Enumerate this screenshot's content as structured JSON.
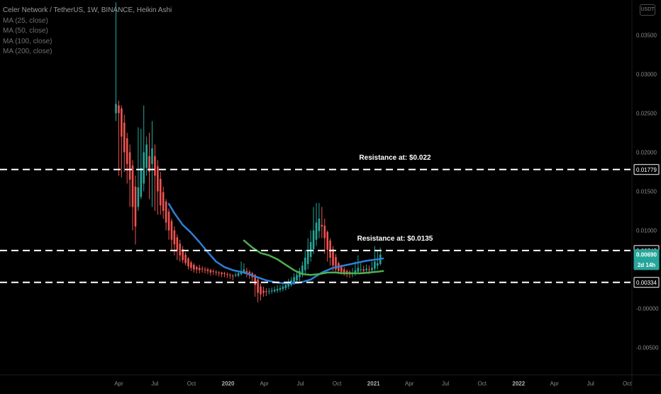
{
  "header": {
    "title": "Celer Network / TetherUS, 1W, BINANCE, Heikin Ashi",
    "indicators": [
      "MA (25, close)",
      "MA (50, close)",
      "MA (100, close)",
      "MA (200, close)"
    ],
    "currency": "USDT"
  },
  "colors": {
    "background": "#000000",
    "up": "#26a69a",
    "down": "#ef5350",
    "ma_blue": "#2d7fd6",
    "ma_green": "#4caf50",
    "resistance": "#ffffff",
    "axis_text": "#8a8a8a"
  },
  "chart_data": {
    "type": "candlestick",
    "ylim": [
      -0.0085,
      0.0395
    ],
    "y_ticks": [
      "0.03500",
      "0.03000",
      "0.02500",
      "0.02000",
      "0.01500",
      "0.01000",
      "-0.00000",
      "-0.00500"
    ],
    "x_ticks": [
      "Apr",
      "Jul",
      "Oct",
      "2020",
      "Apr",
      "Jul",
      "Oct",
      "2021",
      "Apr",
      "Jul",
      "Oct",
      "2022",
      "Apr",
      "Jul",
      "Oct"
    ],
    "x_start": "2019-03-25",
    "grid": false,
    "candles": [
      [
        "2019-03-25",
        0.025,
        0.0262,
        0.0392,
        0.024
      ],
      [
        "2019-04-01",
        0.026,
        0.025,
        0.0266,
        0.017
      ],
      [
        "2019-04-08",
        0.0256,
        0.022,
        0.026,
        0.0168
      ],
      [
        "2019-04-15",
        0.0238,
        0.02,
        0.0248,
        0.0175
      ],
      [
        "2019-04-22",
        0.0218,
        0.0185,
        0.0225,
        0.016
      ],
      [
        "2019-04-29",
        0.02,
        0.0165,
        0.021,
        0.013
      ],
      [
        "2019-05-06",
        0.0183,
        0.013,
        0.019,
        0.01
      ],
      [
        "2019-05-13",
        0.0156,
        0.0105,
        0.017,
        0.0082
      ],
      [
        "2019-05-20",
        0.013,
        0.0155,
        0.0232,
        0.0125
      ],
      [
        "2019-05-27",
        0.0143,
        0.018,
        0.023,
        0.014
      ],
      [
        "2019-06-03",
        0.016,
        0.02,
        0.026,
        0.015
      ],
      [
        "2019-06-10",
        0.018,
        0.021,
        0.022,
        0.017
      ],
      [
        "2019-06-17",
        0.0195,
        0.0175,
        0.0225,
        0.014
      ],
      [
        "2019-06-24",
        0.0185,
        0.0205,
        0.024,
        0.013
      ],
      [
        "2019-07-01",
        0.0195,
        0.017,
        0.021,
        0.0125
      ],
      [
        "2019-07-08",
        0.0182,
        0.015,
        0.019,
        0.012
      ],
      [
        "2019-07-15",
        0.0166,
        0.0132,
        0.0175,
        0.012
      ],
      [
        "2019-07-22",
        0.0149,
        0.0125,
        0.0156,
        0.0115
      ],
      [
        "2019-07-29",
        0.0137,
        0.011,
        0.014,
        0.01
      ],
      [
        "2019-08-05",
        0.0124,
        0.01,
        0.0128,
        0.0088
      ],
      [
        "2019-08-12",
        0.0112,
        0.0088,
        0.0115,
        0.0075
      ],
      [
        "2019-08-19",
        0.01,
        0.0082,
        0.0105,
        0.0068
      ],
      [
        "2019-08-26",
        0.0091,
        0.0075,
        0.0095,
        0.0062
      ],
      [
        "2019-09-02",
        0.0083,
        0.0068,
        0.0088,
        0.006
      ],
      [
        "2019-09-09",
        0.0076,
        0.0062,
        0.008,
        0.0058
      ],
      [
        "2019-09-16",
        0.0069,
        0.0058,
        0.0072,
        0.0055
      ],
      [
        "2019-09-23",
        0.0064,
        0.0054,
        0.0066,
        0.005
      ],
      [
        "2019-09-30",
        0.0059,
        0.0052,
        0.0061,
        0.0048
      ],
      [
        "2019-10-07",
        0.0056,
        0.005,
        0.0058,
        0.0046
      ],
      [
        "2019-10-14",
        0.0053,
        0.005,
        0.0055,
        0.0045
      ],
      [
        "2019-10-21",
        0.0052,
        0.0049,
        0.0056,
        0.0045
      ],
      [
        "2019-10-28",
        0.0051,
        0.005,
        0.0054,
        0.0046
      ],
      [
        "2019-11-04",
        0.005,
        0.0049,
        0.0053,
        0.0045
      ],
      [
        "2019-11-11",
        0.005,
        0.0048,
        0.0052,
        0.0044
      ],
      [
        "2019-11-18",
        0.0049,
        0.0046,
        0.0051,
        0.0042
      ],
      [
        "2019-11-25",
        0.0048,
        0.0047,
        0.005,
        0.0043
      ],
      [
        "2019-12-02",
        0.0047,
        0.0046,
        0.0049,
        0.0042
      ],
      [
        "2019-12-09",
        0.0046,
        0.0045,
        0.0048,
        0.0041
      ],
      [
        "2019-12-16",
        0.0046,
        0.0044,
        0.0047,
        0.004
      ],
      [
        "2019-12-23",
        0.0045,
        0.0044,
        0.0047,
        0.004
      ],
      [
        "2019-12-30",
        0.0044,
        0.0043,
        0.0046,
        0.0039
      ],
      [
        "2020-01-06",
        0.0043,
        0.0042,
        0.0045,
        0.0038
      ],
      [
        "2020-01-13",
        0.0042,
        0.0041,
        0.0044,
        0.0036
      ],
      [
        "2020-01-20",
        0.0042,
        0.0043,
        0.0046,
        0.004
      ],
      [
        "2020-01-27",
        0.0042,
        0.0045,
        0.0048,
        0.004
      ],
      [
        "2020-02-03",
        0.0044,
        0.0048,
        0.006,
        0.0042
      ],
      [
        "2020-02-10",
        0.0046,
        0.005,
        0.0058,
        0.0044
      ],
      [
        "2020-02-17",
        0.0048,
        0.0046,
        0.0052,
        0.004
      ],
      [
        "2020-02-24",
        0.0047,
        0.0043,
        0.0049,
        0.0038
      ],
      [
        "2020-03-02",
        0.0045,
        0.004,
        0.0047,
        0.0035
      ],
      [
        "2020-03-09",
        0.0043,
        0.003,
        0.0044,
        0.0015
      ],
      [
        "2020-03-16",
        0.0037,
        0.002,
        0.004,
        0.0008
      ],
      [
        "2020-03-23",
        0.0028,
        0.0018,
        0.0032,
        0.001
      ],
      [
        "2020-03-30",
        0.0023,
        0.002,
        0.0028,
        0.0015
      ],
      [
        "2020-04-06",
        0.0022,
        0.0021,
        0.0026,
        0.0016
      ],
      [
        "2020-04-13",
        0.0022,
        0.0022,
        0.0026,
        0.0018
      ],
      [
        "2020-04-20",
        0.0022,
        0.0023,
        0.0027,
        0.0019
      ],
      [
        "2020-04-27",
        0.0022,
        0.0024,
        0.0028,
        0.002
      ],
      [
        "2020-05-04",
        0.0023,
        0.0025,
        0.003,
        0.002
      ],
      [
        "2020-05-11",
        0.0024,
        0.0026,
        0.003,
        0.0021
      ],
      [
        "2020-05-18",
        0.0025,
        0.0028,
        0.0032,
        0.0022
      ],
      [
        "2020-05-25",
        0.0026,
        0.003,
        0.0034,
        0.0023
      ],
      [
        "2020-06-01",
        0.0028,
        0.0033,
        0.0038,
        0.0025
      ],
      [
        "2020-06-08",
        0.003,
        0.0036,
        0.004,
        0.0028
      ],
      [
        "2020-06-15",
        0.0033,
        0.004,
        0.0045,
        0.003
      ],
      [
        "2020-06-22",
        0.0036,
        0.0043,
        0.0048,
        0.0032
      ],
      [
        "2020-06-29",
        0.004,
        0.0048,
        0.0052,
        0.0035
      ],
      [
        "2020-07-06",
        0.0044,
        0.0055,
        0.006,
        0.004
      ],
      [
        "2020-07-13",
        0.0049,
        0.0065,
        0.0075,
        0.0045
      ],
      [
        "2020-07-20",
        0.0057,
        0.0075,
        0.009,
        0.005
      ],
      [
        "2020-07-27",
        0.0066,
        0.0085,
        0.01,
        0.006
      ],
      [
        "2020-08-03",
        0.0076,
        0.01,
        0.013,
        0.007
      ],
      [
        "2020-08-10",
        0.0088,
        0.011,
        0.0135,
        0.008
      ],
      [
        "2020-08-17",
        0.0099,
        0.0115,
        0.0135,
        0.009
      ],
      [
        "2020-08-24",
        0.0107,
        0.0105,
        0.013,
        0.009
      ],
      [
        "2020-08-31",
        0.0106,
        0.009,
        0.0115,
        0.007
      ],
      [
        "2020-09-07",
        0.0098,
        0.0075,
        0.01,
        0.006
      ],
      [
        "2020-09-14",
        0.0087,
        0.0065,
        0.009,
        0.0055
      ],
      [
        "2020-09-21",
        0.0076,
        0.0055,
        0.008,
        0.0048
      ],
      [
        "2020-09-28",
        0.0066,
        0.005,
        0.007,
        0.0045
      ],
      [
        "2020-10-05",
        0.0058,
        0.0048,
        0.006,
        0.0044
      ],
      [
        "2020-10-12",
        0.0053,
        0.0047,
        0.0056,
        0.0043
      ],
      [
        "2020-10-19",
        0.005,
        0.0046,
        0.0053,
        0.0042
      ],
      [
        "2020-10-26",
        0.0048,
        0.0045,
        0.005,
        0.004
      ],
      [
        "2020-11-02",
        0.0047,
        0.0044,
        0.0049,
        0.0039
      ],
      [
        "2020-11-09",
        0.0045,
        0.0046,
        0.0052,
        0.004
      ],
      [
        "2020-11-16",
        0.0046,
        0.0049,
        0.006,
        0.0042
      ],
      [
        "2020-11-23",
        0.0047,
        0.0052,
        0.0068,
        0.0045
      ],
      [
        "2020-11-30",
        0.005,
        0.005,
        0.0058,
        0.0045
      ],
      [
        "2020-12-07",
        0.005,
        0.0048,
        0.0055,
        0.0044
      ],
      [
        "2020-12-14",
        0.0049,
        0.0051,
        0.0056,
        0.0045
      ],
      [
        "2020-12-21",
        0.005,
        0.0049,
        0.0055,
        0.0044
      ],
      [
        "2020-12-28",
        0.0049,
        0.0052,
        0.006,
        0.0046
      ],
      [
        "2021-01-04",
        0.0051,
        0.006,
        0.008,
        0.0048
      ],
      [
        "2021-01-11",
        0.0055,
        0.0058,
        0.0075,
        0.005
      ],
      [
        "2021-01-18",
        0.0057,
        0.0069,
        0.0078,
        0.0055
      ]
    ],
    "ma_series": [
      {
        "color": "#2d7fd6",
        "points": [
          [
            "2019-08-05",
            0.0134
          ],
          [
            "2019-08-19",
            0.0122
          ],
          [
            "2019-09-09",
            0.0107
          ],
          [
            "2019-09-30",
            0.0097
          ],
          [
            "2019-10-21",
            0.0085
          ],
          [
            "2019-11-11",
            0.0072
          ],
          [
            "2019-12-02",
            0.006
          ],
          [
            "2019-12-23",
            0.0053
          ],
          [
            "2020-01-13",
            0.0049
          ],
          [
            "2020-02-10",
            0.0046
          ],
          [
            "2020-03-09",
            0.0041
          ],
          [
            "2020-04-06",
            0.0036
          ],
          [
            "2020-05-04",
            0.0033
          ],
          [
            "2020-06-01",
            0.0032
          ],
          [
            "2020-06-29",
            0.0033
          ],
          [
            "2020-07-27",
            0.0037
          ],
          [
            "2020-08-24",
            0.0046
          ],
          [
            "2020-09-21",
            0.0052
          ],
          [
            "2020-10-19",
            0.0055
          ],
          [
            "2020-11-16",
            0.0058
          ],
          [
            "2020-12-14",
            0.0061
          ],
          [
            "2021-01-11",
            0.0063
          ],
          [
            "2021-01-25",
            0.0064
          ]
        ]
      },
      {
        "color": "#4caf50",
        "points": [
          [
            "2020-02-10",
            0.0087
          ],
          [
            "2020-03-02",
            0.0078
          ],
          [
            "2020-03-23",
            0.0071
          ],
          [
            "2020-04-13",
            0.0068
          ],
          [
            "2020-05-04",
            0.0063
          ],
          [
            "2020-05-25",
            0.0056
          ],
          [
            "2020-06-15",
            0.0049
          ],
          [
            "2020-07-06",
            0.0044
          ],
          [
            "2020-07-27",
            0.0043
          ],
          [
            "2020-08-17",
            0.0044
          ],
          [
            "2020-09-07",
            0.0046
          ],
          [
            "2020-09-28",
            0.0046
          ],
          [
            "2020-10-19",
            0.0045
          ],
          [
            "2020-11-09",
            0.0045
          ],
          [
            "2020-11-30",
            0.0045
          ],
          [
            "2020-12-21",
            0.0046
          ],
          [
            "2021-01-11",
            0.0047
          ],
          [
            "2021-01-25",
            0.0048
          ]
        ]
      }
    ],
    "resistance_lines": [
      {
        "value": 0.01779,
        "label": "Resistance at: $0.022"
      },
      {
        "value": 0.00742,
        "label": "Resistance at: $0.0135"
      },
      {
        "value": 0.00334,
        "label": ""
      }
    ],
    "price_tags": [
      {
        "value": 0.01779,
        "text": "0.01779",
        "style": "outline"
      },
      {
        "value": 0.00742,
        "text": "0.00742",
        "style": "outline"
      },
      {
        "value": 0.0069,
        "text": "0.00690",
        "style": "up"
      },
      {
        "value": 0.0056,
        "text": "2d 14h",
        "style": "up"
      },
      {
        "value": 0.00334,
        "text": "0.00334",
        "style": "outline"
      }
    ]
  }
}
